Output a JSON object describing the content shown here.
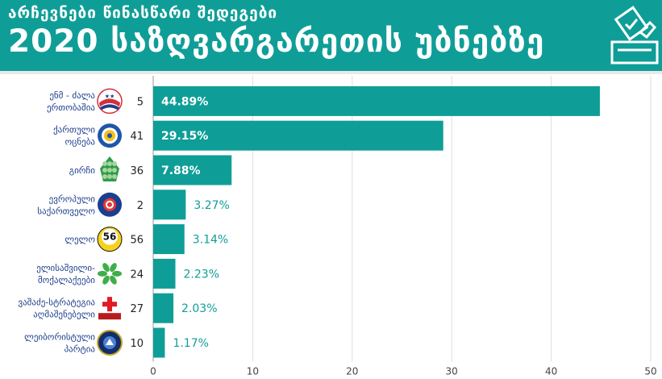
{
  "header": {
    "subtitle": "არჩევნები წინასწარი შედეგები",
    "title": "2020 საზღვარგარეთის უბნებზე",
    "icon": "ballot-box-icon"
  },
  "colors": {
    "accent": "#0f9e97",
    "value_inside": "#ffffff",
    "value_outside": "#0f9e97"
  },
  "chart_data": {
    "type": "bar",
    "orientation": "horizontal",
    "categories": [
      [
        "ენმ - ძალა",
        "ერთობაშია"
      ],
      [
        "ქართული",
        "ოცნება"
      ],
      [
        "გირჩი"
      ],
      [
        "ევროპული",
        "საქართველო"
      ],
      [
        "ლელო"
      ],
      [
        "ელისაშვილი-",
        "მოქალაქეები"
      ],
      [
        "ვაშაძე-სტრატეგია",
        "აღმაშენებელი"
      ],
      [
        "ლეიბორისტული",
        "პარტია"
      ]
    ],
    "party_numbers": [
      "5",
      "41",
      "36",
      "2",
      "56",
      "24",
      "27",
      "10"
    ],
    "values": [
      44.89,
      29.15,
      7.88,
      3.27,
      3.14,
      2.23,
      2.03,
      1.17
    ],
    "value_labels": [
      "44.89%",
      "29.15%",
      "7.88%",
      "3.27%",
      "3.14%",
      "2.23%",
      "2.03%",
      "1.17%"
    ],
    "logos": [
      "unm-logo-icon",
      "georgian-dream-logo-icon",
      "girchi-pinecone-icon",
      "european-georgia-logo-icon",
      "lelo-56-logo-icon",
      "citizens-flower-icon",
      "strategy-builder-cross-icon",
      "labour-party-logo-icon"
    ],
    "logo_texts": {
      "4": "56"
    },
    "xlim": [
      0,
      50
    ],
    "xticks": [
      0,
      10,
      20,
      30,
      40,
      50
    ],
    "grid": true
  }
}
